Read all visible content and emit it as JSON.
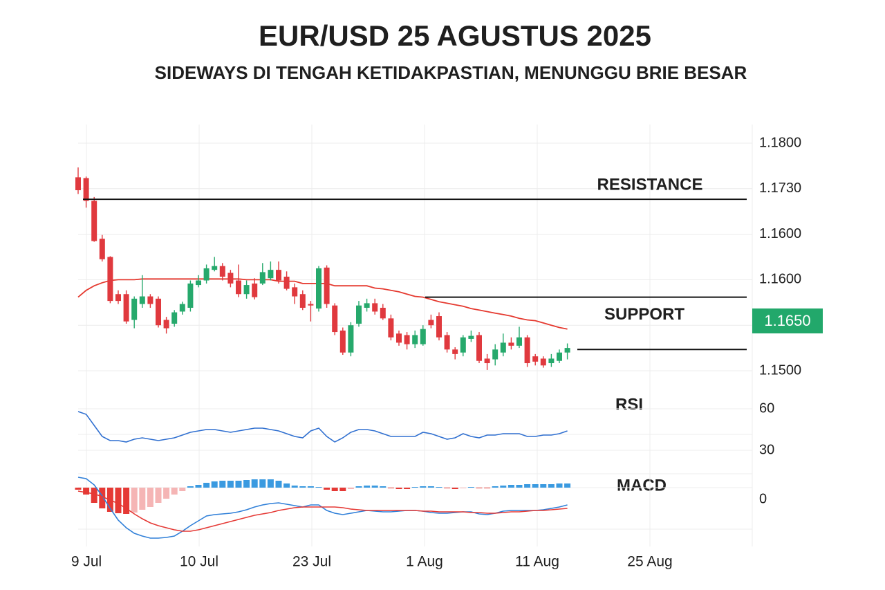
{
  "chart_data": [
    {
      "type": "candlestick",
      "title": "EUR/USD 25 AGUSTUS 2025",
      "subtitle": "SIDEWAYS DI TENGAH KETIDAKPASTIAN, MENUNGGU BRIE BESAR",
      "x_labels": [
        "9 Jul",
        "10 Jul",
        "23 Jul",
        "1 Aug",
        "11 Aug",
        "25 Aug"
      ],
      "price_labels": [
        "1.1800",
        "1.1730",
        "1.1600",
        "1.1600",
        null,
        "1.1500"
      ],
      "price_badge": "1.1650",
      "ylim": [
        1.15,
        1.18
      ],
      "grid": true,
      "up_color": "#26a96c",
      "down_color": "#e0393e",
      "open": [
        1.1755,
        1.1754,
        1.1724,
        1.1674,
        1.165,
        1.1601,
        1.1601,
        1.1567,
        1.1588,
        1.1598,
        1.1595,
        1.1567,
        1.1562,
        1.1578,
        1.1583,
        1.1613,
        1.1619,
        1.1633,
        1.1638,
        1.1629,
        1.1619,
        1.1601,
        1.1615,
        1.1615,
        1.1622,
        1.1633,
        1.1624,
        1.161,
        1.1601,
        1.1588,
        1.1582,
        1.1636,
        1.1586,
        1.1553,
        1.1524,
        1.1562,
        1.1583,
        1.1589,
        1.1583,
        1.1569,
        1.1549,
        1.1547,
        1.1535,
        1.1535,
        1.1567,
        1.1572,
        1.1547,
        1.1528,
        1.1524,
        1.1542,
        1.1547,
        1.1516,
        1.1515,
        1.1524,
        1.1537,
        1.1533,
        1.1544,
        1.1519,
        1.1516,
        1.151,
        1.1513,
        1.1524
      ],
      "high": [
        1.1768,
        1.1756,
        1.1729,
        1.1679,
        1.1651,
        1.1606,
        1.1606,
        1.1598,
        1.1626,
        1.1601,
        1.1598,
        1.1571,
        1.158,
        1.1591,
        1.1619,
        1.1626,
        1.164,
        1.165,
        1.1642,
        1.1633,
        1.164,
        1.1619,
        1.1622,
        1.1642,
        1.1644,
        1.1644,
        1.1631,
        1.1615,
        1.1606,
        1.1592,
        1.1638,
        1.1639,
        1.1589,
        1.1557,
        1.1564,
        1.1592,
        1.1595,
        1.1595,
        1.1588,
        1.1574,
        1.1553,
        1.1551,
        1.1553,
        1.156,
        1.1574,
        1.1577,
        1.1551,
        1.1531,
        1.1547,
        1.1553,
        1.1551,
        1.1522,
        1.1535,
        1.1549,
        1.1544,
        1.1558,
        1.1547,
        1.1522,
        1.1519,
        1.1522,
        1.1528,
        1.1536
      ],
      "low": [
        1.1733,
        1.1715,
        1.167,
        1.1644,
        1.1589,
        1.1588,
        1.1562,
        1.1556,
        1.1583,
        1.1583,
        1.1557,
        1.1549,
        1.1558,
        1.1574,
        1.1578,
        1.161,
        1.1615,
        1.1631,
        1.1619,
        1.161,
        1.1597,
        1.1595,
        1.1594,
        1.1613,
        1.1619,
        1.1615,
        1.1606,
        1.1588,
        1.158,
        1.1565,
        1.1578,
        1.1583,
        1.1547,
        1.1521,
        1.1519,
        1.1558,
        1.1578,
        1.1574,
        1.1567,
        1.154,
        1.1533,
        1.1528,
        1.153,
        1.1533,
        1.1556,
        1.154,
        1.1524,
        1.1515,
        1.1519,
        1.1538,
        1.151,
        1.1501,
        1.1507,
        1.1519,
        1.1528,
        1.153,
        1.1505,
        1.1507,
        1.1504,
        1.1505,
        1.151,
        1.1515
      ],
      "close": [
        1.1738,
        1.1724,
        1.1671,
        1.1647,
        1.1592,
        1.1592,
        1.1565,
        1.1595,
        1.1598,
        1.1588,
        1.156,
        1.1556,
        1.1577,
        1.1588,
        1.1615,
        1.1619,
        1.1635,
        1.1638,
        1.1624,
        1.1615,
        1.1601,
        1.1613,
        1.1597,
        1.163,
        1.1633,
        1.1619,
        1.1608,
        1.1598,
        1.1583,
        1.1586,
        1.1635,
        1.1588,
        1.1551,
        1.1524,
        1.156,
        1.1586,
        1.1589,
        1.1578,
        1.1569,
        1.1544,
        1.1537,
        1.1535,
        1.1547,
        1.1555,
        1.156,
        1.1544,
        1.1528,
        1.1522,
        1.1544,
        1.1546,
        1.1513,
        1.151,
        1.1528,
        1.1537,
        1.1533,
        1.1544,
        1.151,
        1.1512,
        1.1507,
        1.1516,
        1.1524,
        1.153
      ],
      "series": [
        {
          "color": "#e5392f",
          "values": [
            1.1597,
            1.1606,
            1.1612,
            1.1616,
            1.1619,
            1.162,
            1.162,
            1.162,
            1.1621,
            1.1621,
            1.1621,
            1.1621,
            1.1621,
            1.1621,
            1.1621,
            1.1621,
            1.1621,
            1.1621,
            1.1621,
            1.1621,
            1.1621,
            1.162,
            1.162,
            1.162,
            1.162,
            1.1618,
            1.1618,
            1.1618,
            1.1615,
            1.1615,
            1.1615,
            1.1615,
            1.1612,
            1.1612,
            1.1612,
            1.1612,
            1.1612,
            1.1609,
            1.1608,
            1.1606,
            1.1604,
            1.1601,
            1.1598,
            1.1597,
            1.1594,
            1.1591,
            1.1589,
            1.1587,
            1.1585,
            1.1582,
            1.158,
            1.1578,
            1.1576,
            1.1574,
            1.1572,
            1.1569,
            1.1567,
            1.1566,
            1.1563,
            1.156,
            1.1557,
            1.1555
          ]
        }
      ],
      "levels": [
        {
          "label": "RESISTANCE",
          "value": 1.1726
        },
        {
          "label": "SUPPORT",
          "value": 1.1597
        },
        {
          "value": 1.1528
        }
      ]
    },
    {
      "type": "line",
      "title": "RSI",
      "ylim": [
        14,
        68
      ],
      "yticks": [
        60,
        30
      ],
      "series": [
        {
          "color": "#2f6fd0",
          "values": [
            58,
            56,
            48,
            40,
            37,
            37,
            36,
            38,
            39,
            38,
            37,
            38,
            39,
            41,
            43,
            44,
            45,
            45,
            44,
            43,
            44,
            45,
            46,
            46,
            45,
            44,
            42,
            40,
            39,
            44,
            46,
            40,
            36,
            39,
            43,
            45,
            45,
            44,
            42,
            40,
            40,
            40,
            40,
            43,
            42,
            40,
            38,
            39,
            42,
            40,
            39,
            41,
            41,
            42,
            42,
            42,
            40,
            40,
            41,
            41,
            42,
            44
          ]
        }
      ]
    },
    {
      "type": "macd",
      "title": "MACD",
      "ylim": [
        -80,
        20
      ],
      "yticks": [
        0
      ],
      "histogram": {
        "colors": {
          "positive": "#3a9ae0",
          "negative_falling": "#e53935",
          "negative_rising": "#f5b5b5"
        },
        "values": [
          -3,
          -10,
          -22,
          -30,
          -35,
          -37,
          -38,
          -36,
          -32,
          -28,
          -22,
          -16,
          -10,
          -5,
          2,
          4,
          7,
          9,
          10,
          10,
          10,
          11,
          12,
          12,
          12,
          10,
          6,
          3,
          2,
          2,
          1,
          -3,
          -5,
          -5,
          -2,
          2,
          3,
          3,
          2,
          -1,
          -2,
          -2,
          1,
          2,
          2,
          1,
          -1,
          -2,
          -1,
          1,
          -1,
          -1,
          2,
          3,
          4,
          4,
          5,
          5,
          5,
          5,
          6,
          6
        ]
      },
      "series": [
        {
          "color": "#2f7fd8",
          "values": [
            15,
            13,
            4,
            -12,
            -30,
            -47,
            -58,
            -66,
            -70,
            -73,
            -73,
            -72,
            -70,
            -63,
            -55,
            -48,
            -41,
            -39,
            -38,
            -37,
            -35,
            -32,
            -28,
            -25,
            -23,
            -22,
            -24,
            -26,
            -28,
            -25,
            -25,
            -33,
            -37,
            -39,
            -37,
            -35,
            -33,
            -34,
            -35,
            -35,
            -34,
            -33,
            -33,
            -34,
            -36,
            -37,
            -37,
            -36,
            -35,
            -35,
            -38,
            -39,
            -37,
            -34,
            -33,
            -33,
            -33,
            -33,
            -32,
            -30,
            -28,
            -25
          ]
        },
        {
          "color": "#e53935",
          "values": [
            -5,
            -7,
            -9,
            -13,
            -18,
            -23,
            -30,
            -38,
            -45,
            -51,
            -55,
            -58,
            -61,
            -63,
            -63,
            -61,
            -58,
            -55,
            -52,
            -49,
            -46,
            -43,
            -40,
            -38,
            -36,
            -33,
            -31,
            -29,
            -28,
            -28,
            -28,
            -28,
            -28,
            -29,
            -31,
            -32,
            -33,
            -33,
            -33,
            -33,
            -33,
            -33,
            -33,
            -34,
            -34,
            -35,
            -35,
            -35,
            -35,
            -36,
            -36,
            -37,
            -37,
            -36,
            -35,
            -35,
            -34,
            -33,
            -33,
            -32,
            -31,
            -30
          ]
        }
      ]
    }
  ]
}
